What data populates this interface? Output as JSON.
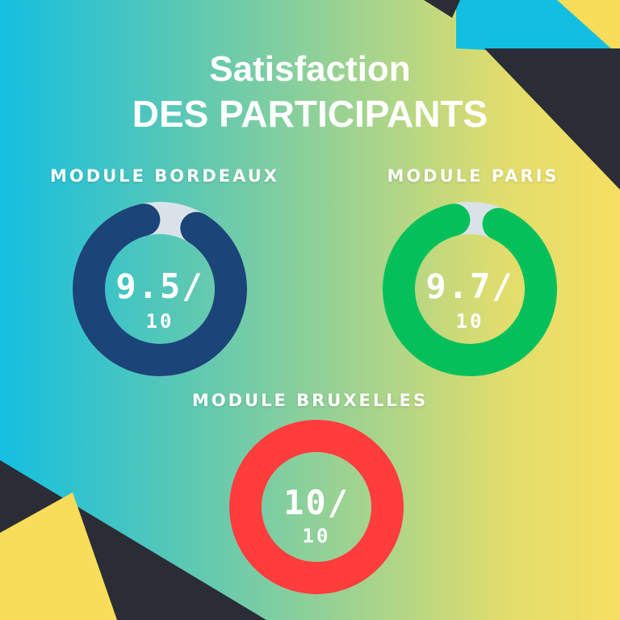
{
  "title": {
    "line1": "Satisfaction",
    "line2": "DES PARTICIPANTS"
  },
  "colors": {
    "bordeaux": "#1b4478",
    "paris": "#05c05a",
    "bruxelles": "#ff3d3d",
    "track": "#d9e2e8",
    "dark_shape": "#2b2d36",
    "cyan_shape": "#12bfe0",
    "yellow_shape": "#f7dd5a"
  },
  "chart_data": [
    {
      "type": "pie",
      "title": "MODULE BORDEAUX",
      "value": 9.5,
      "max": 10,
      "score_text": "9.5/",
      "max_text": "10"
    },
    {
      "type": "pie",
      "title": "MODULE PARIS",
      "value": 9.7,
      "max": 10,
      "score_text": "9.7/",
      "max_text": "10"
    },
    {
      "type": "pie",
      "title": "MODULE BRUXELLES",
      "value": 10,
      "max": 10,
      "score_text": "10/",
      "max_text": "10"
    }
  ]
}
